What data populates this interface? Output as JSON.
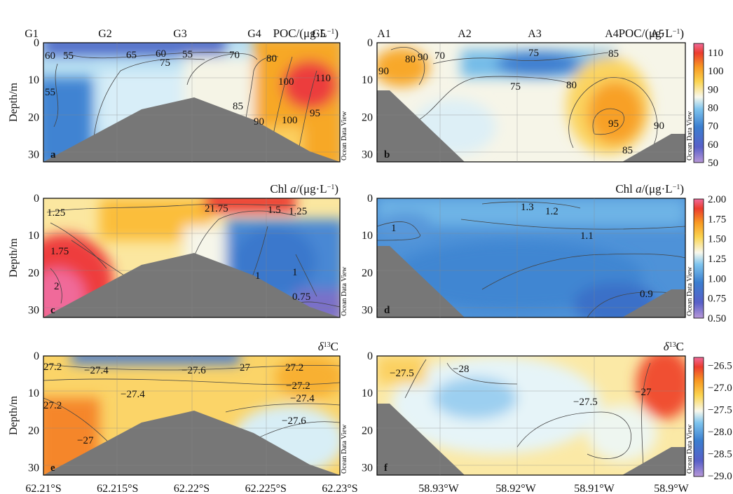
{
  "chart_data": [
    {
      "id": "a",
      "type": "heatmap",
      "panel_label": "a",
      "title_prefix": "POC/(μg·L",
      "title_sup": "−1",
      "title_suffix": ")",
      "ylabel": "Depth/m",
      "watermark": "Ocean Data View",
      "ylim": [
        0,
        32
      ],
      "yticks": [
        "0",
        "10",
        "20",
        "30"
      ],
      "xlim": [
        0,
        1
      ],
      "xticks": [],
      "stations": [
        "G1",
        "G2",
        "G3",
        "G4",
        "G5"
      ],
      "contour_labels": [
        "60",
        "55",
        "65",
        "60",
        "55",
        "75",
        "70",
        "80",
        "100",
        "55",
        "110",
        "100",
        "85",
        "95",
        "90"
      ]
    },
    {
      "id": "b",
      "type": "heatmap",
      "panel_label": "b",
      "title_prefix": "POC/(μg·L",
      "title_sup": "−1",
      "title_suffix": ")",
      "watermark": "Ocean Data View",
      "ylim": [
        0,
        32
      ],
      "yticks": [
        "0",
        "10",
        "20",
        "30"
      ],
      "xticks": [],
      "stations": [
        "A1",
        "A2",
        "A3",
        "A4",
        "A5"
      ],
      "contour_labels": [
        "90",
        "80",
        "90",
        "70",
        "75",
        "85",
        "75",
        "80",
        "95",
        "90",
        "85"
      ],
      "colorbar": {
        "ticks": [
          "110",
          "100",
          "90",
          "80",
          "70",
          "60",
          "50"
        ],
        "range": [
          50,
          115
        ]
      }
    },
    {
      "id": "c",
      "type": "heatmap",
      "panel_label": "c",
      "title_prefix": "Chl ",
      "title_italic": "a",
      "title_mid": "/(μg·L",
      "title_sup": "−1",
      "title_suffix": ")",
      "ylabel": "Depth/m",
      "watermark": "Ocean Data View",
      "ylim": [
        0,
        32
      ],
      "yticks": [
        "0",
        "10",
        "20",
        "30"
      ],
      "contour_labels": [
        "1.25",
        "21.75",
        "1.5",
        "1.25",
        "1.75",
        "2",
        "1",
        "1",
        "0.75"
      ]
    },
    {
      "id": "d",
      "type": "heatmap",
      "panel_label": "d",
      "title_prefix": "Chl ",
      "title_italic": "a",
      "title_mid": "/(μg·L",
      "title_sup": "−1",
      "title_suffix": ")",
      "watermark": "Ocean Data View",
      "ylim": [
        0,
        32
      ],
      "yticks": [
        "0",
        "10",
        "20",
        "30"
      ],
      "contour_labels": [
        "1.3",
        "1.2",
        "1",
        "1.1",
        "0.9"
      ],
      "colorbar": {
        "ticks": [
          "2.00",
          "1.75",
          "1.50",
          "1.25",
          "1.00",
          "0.75",
          "0.50"
        ],
        "range": [
          0.5,
          2.0
        ]
      }
    },
    {
      "id": "e",
      "type": "heatmap",
      "panel_label": "e",
      "title_italic": "δ",
      "title_sup": "13",
      "title_suffix": "C",
      "ylabel": "Depth/m",
      "watermark": "Ocean Data View",
      "ylim": [
        0,
        32
      ],
      "yticks": [
        "0",
        "10",
        "20",
        "30"
      ],
      "xticks": [
        "62.21°S",
        "62.215°S",
        "62.22°S",
        "62.225°S",
        "62.23°S"
      ],
      "contour_labels": [
        "27.2",
        "−27.4",
        "−27.6",
        "27",
        "27.2",
        "−27.2",
        "−27.4",
        "27.2",
        "−27.4",
        "−27.6",
        "−27"
      ]
    },
    {
      "id": "f",
      "type": "heatmap",
      "panel_label": "f",
      "title_italic": "δ",
      "title_sup": "13",
      "title_suffix": "C",
      "watermark": "Ocean Data View",
      "ylim": [
        0,
        32
      ],
      "yticks": [
        "0",
        "10",
        "20",
        "30"
      ],
      "xticks": [
        "58.93°W",
        "58.92°W",
        "58.91°W",
        "58.9°W"
      ],
      "contour_labels": [
        "−27.5",
        "−28",
        "−27.5",
        "−27"
      ],
      "colorbar": {
        "ticks": [
          "−26.5",
          "−27.0",
          "−27.5",
          "−28.0",
          "−28.5",
          "−29.0"
        ],
        "range": [
          -29.0,
          -26.3
        ]
      }
    }
  ]
}
